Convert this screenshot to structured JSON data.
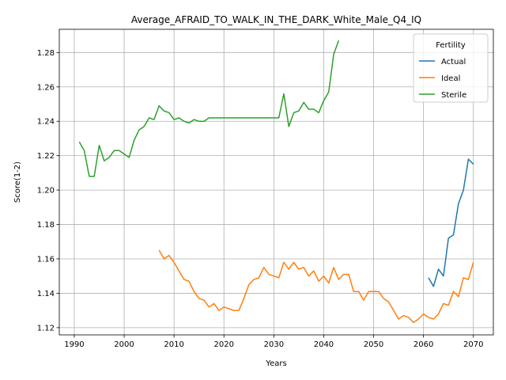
{
  "chart_data": {
    "type": "line",
    "title": "Average_AFRAID_TO_WALK_IN_THE_DARK_White_Male_Q4_IQ",
    "xlabel": "Years",
    "ylabel": "Score(1-2)",
    "xlim": [
      1987,
      2074
    ],
    "ylim": [
      1.1158,
      1.2935
    ],
    "x_ticks": [
      1990,
      2000,
      2010,
      2020,
      2030,
      2040,
      2050,
      2060,
      2070
    ],
    "y_ticks": [
      1.12,
      1.14,
      1.16,
      1.18,
      1.2,
      1.22,
      1.24,
      1.26,
      1.28
    ],
    "x_tick_labels": [
      "1990",
      "2000",
      "2010",
      "2020",
      "2030",
      "2040",
      "2050",
      "2060",
      "2070"
    ],
    "y_tick_labels": [
      "1.12",
      "1.14",
      "1.16",
      "1.18",
      "1.20",
      "1.22",
      "1.24",
      "1.26",
      "1.28"
    ],
    "grid": true,
    "legend": {
      "title": "Fertility",
      "placement": "top-right"
    },
    "series": [
      {
        "name": "Actual",
        "color": "#1f77b4",
        "x": [
          2061,
          2062,
          2063,
          2064,
          2065,
          2066,
          2067,
          2068,
          2069,
          2070
        ],
        "y": [
          1.149,
          1.144,
          1.154,
          1.15,
          1.172,
          1.174,
          1.192,
          1.2,
          1.218,
          1.215
        ]
      },
      {
        "name": "Ideal",
        "color": "#ff7f0e",
        "x": [
          2007,
          2008,
          2009,
          2010,
          2011,
          2012,
          2013,
          2014,
          2015,
          2016,
          2017,
          2018,
          2019,
          2020,
          2021,
          2022,
          2023,
          2024,
          2025,
          2026,
          2027,
          2028,
          2029,
          2030,
          2031,
          2032,
          2033,
          2034,
          2035,
          2036,
          2037,
          2038,
          2039,
          2040,
          2041,
          2042,
          2043,
          2044,
          2045,
          2046,
          2047,
          2048,
          2049,
          2050,
          2051,
          2052,
          2053,
          2054,
          2055,
          2056,
          2057,
          2058,
          2059,
          2060,
          2061,
          2062,
          2063,
          2064,
          2065,
          2066,
          2067,
          2068,
          2069,
          2070
        ],
        "y": [
          1.165,
          1.16,
          1.162,
          1.158,
          1.153,
          1.148,
          1.147,
          1.141,
          1.137,
          1.136,
          1.132,
          1.134,
          1.13,
          1.132,
          1.131,
          1.13,
          1.13,
          1.137,
          1.145,
          1.148,
          1.149,
          1.155,
          1.151,
          1.15,
          1.149,
          1.158,
          1.154,
          1.158,
          1.154,
          1.155,
          1.15,
          1.153,
          1.147,
          1.15,
          1.146,
          1.155,
          1.148,
          1.151,
          1.151,
          1.141,
          1.141,
          1.136,
          1.141,
          1.141,
          1.141,
          1.137,
          1.135,
          1.13,
          1.125,
          1.127,
          1.126,
          1.123,
          1.125,
          1.128,
          1.126,
          1.125,
          1.128,
          1.134,
          1.133,
          1.141,
          1.138,
          1.149,
          1.148,
          1.158
        ]
      },
      {
        "name": "Sterile",
        "color": "#2ca02c",
        "x": [
          1991,
          1992,
          1993,
          1994,
          1995,
          1996,
          1997,
          1998,
          1999,
          2000,
          2001,
          2002,
          2003,
          2004,
          2005,
          2006,
          2007,
          2008,
          2009,
          2010,
          2011,
          2012,
          2013,
          2014,
          2015,
          2016,
          2017,
          2018,
          2019,
          2020,
          2021,
          2022,
          2023,
          2024,
          2025,
          2026,
          2027,
          2028,
          2029,
          2030,
          2031,
          2032,
          2033,
          2034,
          2035,
          2036,
          2037,
          2038,
          2039,
          2040,
          2041,
          2042,
          2043
        ],
        "y": [
          1.228,
          1.223,
          1.208,
          1.208,
          1.226,
          1.217,
          1.219,
          1.223,
          1.223,
          1.221,
          1.219,
          1.229,
          1.235,
          1.237,
          1.242,
          1.241,
          1.249,
          1.246,
          1.245,
          1.241,
          1.242,
          1.24,
          1.239,
          1.241,
          1.24,
          1.24,
          1.242,
          1.242,
          1.242,
          1.242,
          1.242,
          1.242,
          1.242,
          1.242,
          1.242,
          1.242,
          1.242,
          1.242,
          1.242,
          1.242,
          1.242,
          1.256,
          1.237,
          1.245,
          1.246,
          1.251,
          1.247,
          1.247,
          1.245,
          1.252,
          1.257,
          1.279,
          1.287
        ]
      }
    ]
  }
}
